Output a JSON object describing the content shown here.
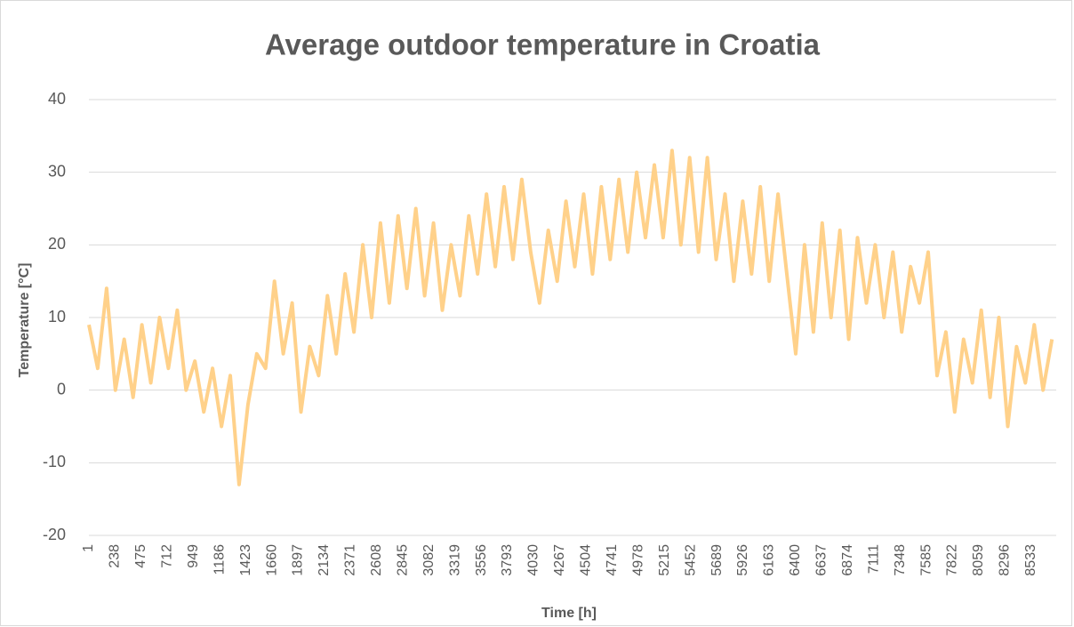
{
  "chart_data": {
    "type": "line",
    "title": "Average outdoor temperature in Croatia",
    "xlabel": "Time [h]",
    "ylabel": "Temperature [°C]",
    "color": "#ffd18a",
    "grid": true,
    "xlim": [
      1,
      8760
    ],
    "xticks": [
      1,
      238,
      475,
      712,
      949,
      1186,
      1423,
      1660,
      1897,
      2134,
      2371,
      2608,
      2845,
      3082,
      3319,
      3556,
      3793,
      4030,
      4267,
      4504,
      4741,
      4978,
      5215,
      5452,
      5689,
      5926,
      6163,
      6400,
      6637,
      6874,
      7111,
      7348,
      7585,
      7822,
      8059,
      8296,
      8533
    ],
    "ylim": [
      -20,
      40
    ],
    "yticks": [
      -20,
      -10,
      0,
      10,
      20,
      30,
      40
    ],
    "x": [
      1,
      81,
      161,
      241,
      321,
      401,
      481,
      561,
      641,
      721,
      801,
      881,
      961,
      1041,
      1121,
      1201,
      1281,
      1361,
      1441,
      1521,
      1601,
      1681,
      1761,
      1841,
      1921,
      2001,
      2081,
      2161,
      2241,
      2321,
      2401,
      2481,
      2561,
      2641,
      2721,
      2801,
      2881,
      2961,
      3041,
      3121,
      3201,
      3281,
      3361,
      3441,
      3521,
      3601,
      3681,
      3761,
      3841,
      3921,
      4001,
      4081,
      4161,
      4241,
      4321,
      4401,
      4481,
      4561,
      4641,
      4721,
      4801,
      4881,
      4961,
      5041,
      5121,
      5201,
      5281,
      5361,
      5441,
      5521,
      5601,
      5681,
      5761,
      5841,
      5921,
      6001,
      6081,
      6161,
      6241,
      6321,
      6401,
      6481,
      6561,
      6641,
      6721,
      6801,
      6881,
      6961,
      7041,
      7121,
      7201,
      7281,
      7361,
      7441,
      7521,
      7601,
      7681,
      7761,
      7841,
      7921,
      8001,
      8081,
      8161,
      8241,
      8321,
      8401,
      8481,
      8561,
      8641,
      8721
    ],
    "values": [
      9,
      3,
      14,
      0,
      7,
      -1,
      9,
      1,
      10,
      3,
      11,
      0,
      4,
      -3,
      3,
      -5,
      2,
      -13,
      -2,
      5,
      3,
      15,
      5,
      12,
      -3,
      6,
      2,
      13,
      5,
      16,
      8,
      20,
      10,
      23,
      12,
      24,
      14,
      25,
      13,
      23,
      11,
      20,
      13,
      24,
      16,
      27,
      17,
      28,
      18,
      29,
      19,
      12,
      22,
      15,
      26,
      17,
      27,
      16,
      28,
      18,
      29,
      19,
      30,
      21,
      31,
      21,
      33,
      20,
      32,
      19,
      32,
      18,
      27,
      15,
      26,
      16,
      28,
      15,
      27,
      16,
      5,
      20,
      8,
      23,
      10,
      22,
      7,
      21,
      12,
      20,
      10,
      19,
      8,
      17,
      12,
      19,
      2,
      8,
      -3,
      7,
      1,
      11,
      -1,
      10,
      -5,
      6,
      1,
      9,
      0,
      7
    ]
  }
}
